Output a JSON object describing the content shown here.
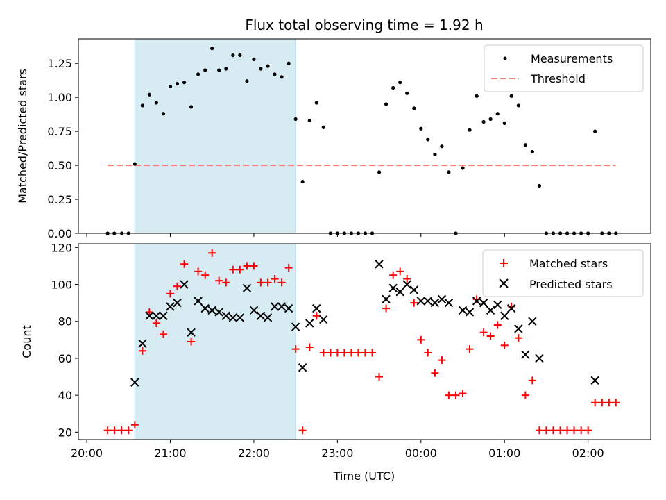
{
  "chart_data": [
    {
      "type": "scatter",
      "title": "Flux total observing time = 1.92 h",
      "xlabel": "",
      "ylabel": "Matched/Predicted stars",
      "ylim": [
        0,
        1.43
      ],
      "yticks": [
        0.0,
        0.25,
        0.5,
        0.75,
        1.0,
        1.25
      ],
      "ytick_labels": [
        "0.00",
        "0.25",
        "0.50",
        "0.75",
        "1.00",
        "1.25"
      ],
      "shaded_span_hours": [
        20.575,
        22.5
      ],
      "legend": {
        "placement": "top-right",
        "entries": [
          "Measurements",
          "Threshold"
        ]
      },
      "threshold": {
        "name": "Threshold",
        "value": 0.5,
        "x_range": [
          20.25,
          26.33
        ],
        "color": "#ff7f7f"
      },
      "series": [
        {
          "name": "Measurements",
          "color": "#000000",
          "marker": "dot",
          "points": [
            [
              20.25,
              0
            ],
            [
              20.33,
              0
            ],
            [
              20.42,
              0
            ],
            [
              20.5,
              0
            ],
            [
              20.575,
              0.51
            ],
            [
              20.667,
              0.94
            ],
            [
              20.75,
              1.02
            ],
            [
              20.833,
              0.96
            ],
            [
              20.917,
              0.88
            ],
            [
              21.0,
              1.08
            ],
            [
              21.083,
              1.1
            ],
            [
              21.167,
              1.11
            ],
            [
              21.25,
              0.93
            ],
            [
              21.333,
              1.17
            ],
            [
              21.417,
              1.2
            ],
            [
              21.5,
              1.36
            ],
            [
              21.583,
              1.2
            ],
            [
              21.667,
              1.21
            ],
            [
              21.75,
              1.31
            ],
            [
              21.833,
              1.31
            ],
            [
              21.917,
              1.12
            ],
            [
              22.0,
              1.28
            ],
            [
              22.083,
              1.21
            ],
            [
              22.167,
              1.23
            ],
            [
              22.25,
              1.17
            ],
            [
              22.333,
              1.15
            ],
            [
              22.417,
              1.25
            ],
            [
              22.5,
              0.84
            ],
            [
              22.583,
              0.38
            ],
            [
              22.667,
              0.83
            ],
            [
              22.75,
              0.96
            ],
            [
              22.833,
              0.78
            ],
            [
              22.917,
              0
            ],
            [
              23.0,
              0
            ],
            [
              23.083,
              0
            ],
            [
              23.167,
              0
            ],
            [
              23.25,
              0
            ],
            [
              23.333,
              0
            ],
            [
              23.417,
              0
            ],
            [
              23.5,
              0.45
            ],
            [
              23.583,
              0.95
            ],
            [
              23.667,
              1.07
            ],
            [
              23.75,
              1.11
            ],
            [
              23.833,
              1.03
            ],
            [
              23.917,
              0.92
            ],
            [
              24.0,
              0.77
            ],
            [
              24.083,
              0.69
            ],
            [
              24.167,
              0.58
            ],
            [
              24.25,
              0.64
            ],
            [
              24.333,
              0.45
            ],
            [
              24.417,
              0
            ],
            [
              24.5,
              0.48
            ],
            [
              24.583,
              0.76
            ],
            [
              24.667,
              1.01
            ],
            [
              24.75,
              0.82
            ],
            [
              24.833,
              0.84
            ],
            [
              24.917,
              0.88
            ],
            [
              25.0,
              0.81
            ],
            [
              25.083,
              1.01
            ],
            [
              25.167,
              0.94
            ],
            [
              25.25,
              0.65
            ],
            [
              25.333,
              0.6
            ],
            [
              25.417,
              0.35
            ],
            [
              25.5,
              0
            ],
            [
              25.583,
              0
            ],
            [
              25.667,
              0
            ],
            [
              25.75,
              0
            ],
            [
              25.833,
              0
            ],
            [
              25.917,
              0
            ],
            [
              26.0,
              0
            ],
            [
              26.083,
              0.75
            ],
            [
              26.167,
              0
            ],
            [
              26.25,
              0
            ],
            [
              26.333,
              0
            ]
          ]
        }
      ]
    },
    {
      "type": "scatter",
      "title": "",
      "xlabel": "Time (UTC)",
      "ylabel": "Count",
      "ylim": [
        16,
        122
      ],
      "yticks": [
        20,
        40,
        60,
        80,
        100,
        120
      ],
      "ytick_labels": [
        "20",
        "40",
        "60",
        "80",
        "100",
        "120"
      ],
      "xlim_hours": [
        19.9,
        26.75
      ],
      "xticks_hours": [
        20,
        21,
        22,
        23,
        24,
        25,
        26
      ],
      "xtick_labels": [
        "20:00",
        "21:00",
        "22:00",
        "23:00",
        "00:00",
        "01:00",
        "02:00"
      ],
      "shaded_span_hours": [
        20.575,
        22.5
      ],
      "legend": {
        "placement": "top-right",
        "entries": [
          "Matched stars",
          "Predicted stars"
        ]
      },
      "series": [
        {
          "name": "Matched stars",
          "color": "#ff0000",
          "marker": "plus",
          "points": [
            [
              20.25,
              21
            ],
            [
              20.333,
              21
            ],
            [
              20.417,
              21
            ],
            [
              20.5,
              21
            ],
            [
              20.575,
              24
            ],
            [
              20.667,
              64
            ],
            [
              20.75,
              85
            ],
            [
              20.833,
              79
            ],
            [
              20.917,
              73
            ],
            [
              21.0,
              95
            ],
            [
              21.083,
              99
            ],
            [
              21.167,
              111
            ],
            [
              21.25,
              69
            ],
            [
              21.333,
              107
            ],
            [
              21.417,
              105
            ],
            [
              21.5,
              117
            ],
            [
              21.583,
              102
            ],
            [
              21.667,
              101
            ],
            [
              21.75,
              108
            ],
            [
              21.833,
              108
            ],
            [
              21.917,
              110
            ],
            [
              22.0,
              110
            ],
            [
              22.083,
              101
            ],
            [
              22.167,
              101
            ],
            [
              22.25,
              103
            ],
            [
              22.333,
              101
            ],
            [
              22.417,
              109
            ],
            [
              22.5,
              65
            ],
            [
              22.583,
              21
            ],
            [
              22.667,
              66
            ],
            [
              22.75,
              83
            ],
            [
              22.833,
              63
            ],
            [
              22.917,
              63
            ],
            [
              23.0,
              63
            ],
            [
              23.083,
              63
            ],
            [
              23.167,
              63
            ],
            [
              23.25,
              63
            ],
            [
              23.333,
              63
            ],
            [
              23.417,
              63
            ],
            [
              23.5,
              50
            ],
            [
              23.583,
              87
            ],
            [
              23.667,
              105
            ],
            [
              23.75,
              107
            ],
            [
              23.833,
              103
            ],
            [
              23.917,
              90
            ],
            [
              24.0,
              70
            ],
            [
              24.083,
              63
            ],
            [
              24.167,
              52
            ],
            [
              24.25,
              59
            ],
            [
              24.333,
              40
            ],
            [
              24.417,
              40
            ],
            [
              24.5,
              41
            ],
            [
              24.583,
              65
            ],
            [
              24.667,
              92
            ],
            [
              24.75,
              74
            ],
            [
              24.833,
              72
            ],
            [
              24.917,
              78
            ],
            [
              25.0,
              67
            ],
            [
              25.083,
              88
            ],
            [
              25.167,
              71
            ],
            [
              25.25,
              40
            ],
            [
              25.333,
              48
            ],
            [
              25.417,
              21
            ],
            [
              25.5,
              21
            ],
            [
              25.583,
              21
            ],
            [
              25.667,
              21
            ],
            [
              25.75,
              21
            ],
            [
              25.833,
              21
            ],
            [
              25.917,
              21
            ],
            [
              26.0,
              21
            ],
            [
              26.083,
              36
            ],
            [
              26.167,
              36
            ],
            [
              26.25,
              36
            ],
            [
              26.333,
              36
            ]
          ]
        },
        {
          "name": "Predicted stars",
          "color": "#000000",
          "marker": "x",
          "points": [
            [
              20.575,
              47
            ],
            [
              20.667,
              68
            ],
            [
              20.75,
              83
            ],
            [
              20.833,
              83
            ],
            [
              20.917,
              83
            ],
            [
              21.0,
              88
            ],
            [
              21.083,
              90
            ],
            [
              21.167,
              100
            ],
            [
              21.25,
              74
            ],
            [
              21.333,
              91
            ],
            [
              21.417,
              87
            ],
            [
              21.5,
              86
            ],
            [
              21.583,
              85
            ],
            [
              21.667,
              83
            ],
            [
              21.75,
              82
            ],
            [
              21.833,
              82
            ],
            [
              21.917,
              98
            ],
            [
              22.0,
              86
            ],
            [
              22.083,
              83
            ],
            [
              22.167,
              82
            ],
            [
              22.25,
              88
            ],
            [
              22.333,
              88
            ],
            [
              22.417,
              87
            ],
            [
              22.5,
              77
            ],
            [
              22.583,
              55
            ],
            [
              22.667,
              79
            ],
            [
              22.75,
              87
            ],
            [
              22.833,
              81
            ],
            [
              23.5,
              111
            ],
            [
              23.583,
              92
            ],
            [
              23.667,
              98
            ],
            [
              23.75,
              96
            ],
            [
              23.833,
              100
            ],
            [
              23.917,
              97
            ],
            [
              24.0,
              91
            ],
            [
              24.083,
              91
            ],
            [
              24.167,
              90
            ],
            [
              24.25,
              92
            ],
            [
              24.333,
              90
            ],
            [
              24.5,
              86
            ],
            [
              24.583,
              85
            ],
            [
              24.667,
              91
            ],
            [
              24.75,
              90
            ],
            [
              24.833,
              86
            ],
            [
              24.917,
              89
            ],
            [
              25.0,
              83
            ],
            [
              25.083,
              87
            ],
            [
              25.167,
              76
            ],
            [
              25.25,
              62
            ],
            [
              25.333,
              80
            ],
            [
              25.417,
              60
            ],
            [
              26.083,
              48
            ]
          ]
        }
      ]
    }
  ]
}
